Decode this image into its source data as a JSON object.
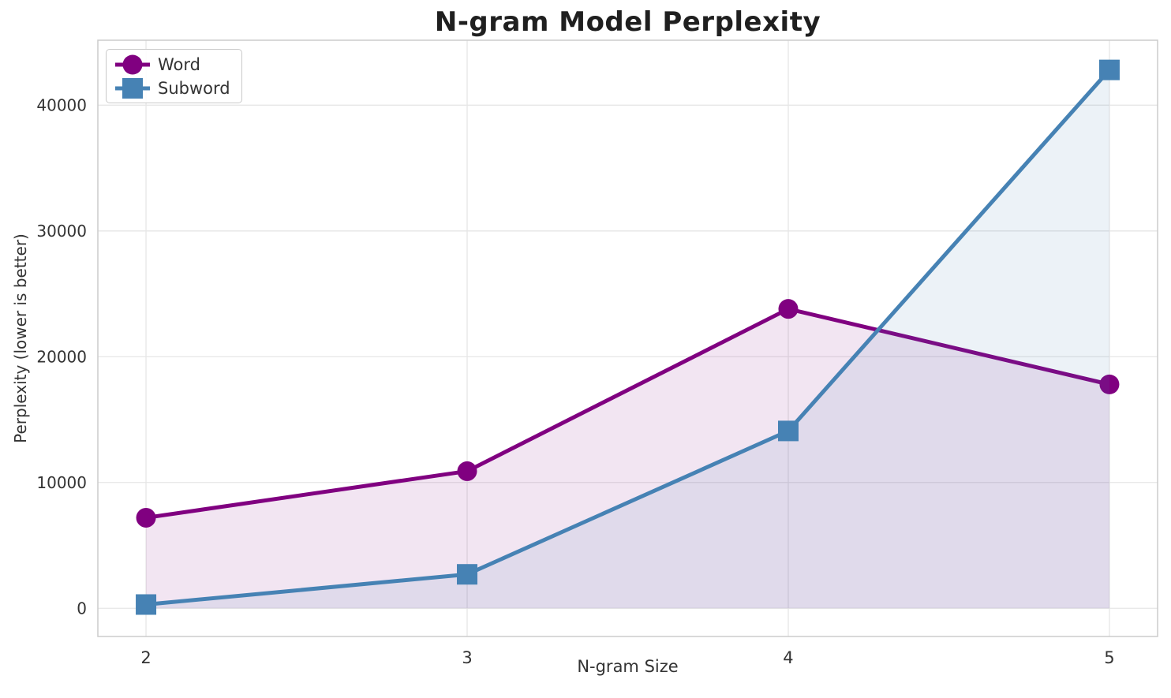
{
  "chart_data": {
    "type": "line",
    "title": "N-gram Model Perplexity",
    "xlabel": "N-gram Size",
    "ylabel": "Perplexity (lower is better)",
    "x": [
      2,
      3,
      4,
      5
    ],
    "series": [
      {
        "name": "Word",
        "marker": "circle",
        "color": "#800080",
        "values": [
          7200,
          10900,
          23800,
          17800
        ]
      },
      {
        "name": "Subword",
        "marker": "square",
        "color": "#4682B4",
        "values": [
          300,
          2700,
          14100,
          42800
        ]
      }
    ],
    "fill_alpha": 0.1,
    "area_baseline": 0,
    "xticks": [
      "2",
      "3",
      "4",
      "5"
    ],
    "xtick_values": [
      2,
      3,
      4,
      5
    ],
    "yticks": [
      "0",
      "10000",
      "20000",
      "30000",
      "40000"
    ],
    "ytick_values": [
      0,
      10000,
      20000,
      30000,
      40000
    ],
    "xlim": [
      1.85,
      5.15
    ],
    "ylim": [
      -2240,
      45160
    ],
    "grid": true,
    "legend_position": "upper-left"
  },
  "style": {
    "grid_color": "#e6e6e6",
    "spine_color": "#cccccc",
    "tick_text_color": "#333333",
    "title_color": "#1f1f1f",
    "word_color": "#800080",
    "subword_color": "#4682B4"
  }
}
